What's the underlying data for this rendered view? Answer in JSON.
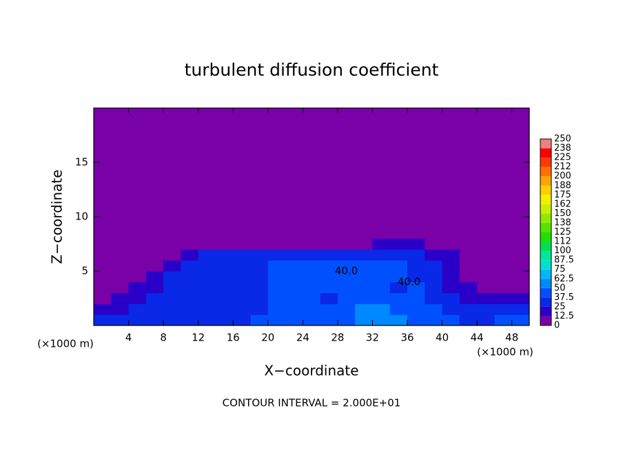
{
  "chart_data": {
    "type": "contour",
    "title": "turbulent diffusion coefficient",
    "xlabel": "X−coordinate",
    "ylabel": "Z−coordinate",
    "xunit": "(×1000 m)",
    "yunit": "(×1000 m)",
    "footer": "CONTOUR INTERVAL = 2.000E+01",
    "xlim": [
      0,
      50
    ],
    "ylim": [
      0,
      20
    ],
    "xticks": [
      4,
      8,
      12,
      16,
      20,
      24,
      28,
      32,
      36,
      40,
      44,
      48
    ],
    "yticks": [
      5,
      10,
      15
    ],
    "xbins": [
      0,
      2,
      4,
      6,
      8,
      10,
      12,
      14,
      16,
      18,
      20,
      22,
      24,
      26,
      28,
      30,
      32,
      34,
      36,
      38,
      40,
      42,
      44,
      46,
      48,
      50
    ],
    "ybins": [
      0,
      1,
      2,
      3,
      4,
      5,
      6,
      7,
      8,
      20
    ],
    "z": [
      [
        30,
        25,
        25,
        30,
        30,
        35,
        35,
        30,
        35,
        40,
        40,
        40,
        40,
        40,
        45,
        50,
        55,
        50,
        45,
        40,
        40,
        35,
        35,
        40,
        45
      ],
      [
        15,
        20,
        25,
        25,
        25,
        30,
        30,
        30,
        35,
        35,
        40,
        40,
        40,
        40,
        45,
        50,
        50,
        45,
        45,
        40,
        35,
        30,
        30,
        35,
        35
      ],
      [
        10,
        15,
        20,
        25,
        25,
        30,
        35,
        35,
        35,
        35,
        40,
        40,
        40,
        35,
        45,
        45,
        45,
        40,
        45,
        35,
        25,
        20,
        20,
        15,
        20
      ],
      [
        10,
        10,
        15,
        20,
        25,
        30,
        35,
        35,
        35,
        35,
        40,
        40,
        40,
        40,
        45,
        40,
        40,
        35,
        40,
        30,
        20,
        15,
        10,
        10,
        10
      ],
      [
        5,
        10,
        10,
        15,
        25,
        30,
        35,
        30,
        35,
        35,
        40,
        40,
        40,
        45,
        40,
        40,
        40,
        40,
        35,
        25,
        15,
        10,
        5,
        5,
        5
      ],
      [
        5,
        5,
        5,
        10,
        20,
        30,
        30,
        30,
        35,
        35,
        40,
        40,
        40,
        40,
        40,
        40,
        40,
        40,
        35,
        25,
        20,
        10,
        5,
        5,
        5
      ],
      [
        0,
        0,
        0,
        5,
        5,
        15,
        25,
        30,
        30,
        30,
        30,
        30,
        30,
        25,
        30,
        30,
        30,
        30,
        30,
        20,
        20,
        5,
        0,
        0,
        0
      ],
      [
        0,
        0,
        0,
        0,
        0,
        0,
        0,
        5,
        5,
        5,
        5,
        5,
        5,
        5,
        5,
        10,
        15,
        20,
        15,
        5,
        0,
        0,
        0,
        0,
        0
      ],
      [
        0,
        0,
        0,
        0,
        0,
        0,
        0,
        0,
        0,
        0,
        0,
        0,
        0,
        0,
        0,
        0,
        0,
        0,
        0,
        0,
        0,
        0,
        0,
        0,
        0
      ]
    ],
    "contour_labels": [
      {
        "text": "40.0",
        "x": 29,
        "y": 5
      },
      {
        "text": "40.0",
        "x": 36.2,
        "y": 4
      }
    ],
    "colorbar": {
      "levels": [
        0,
        12.5,
        25,
        37.5,
        50,
        62.5,
        75,
        87.5,
        100,
        112,
        125,
        138,
        150,
        162,
        175,
        188,
        200,
        212,
        225,
        238,
        250
      ],
      "colors": [
        "#7a00a8",
        "#2a00c8",
        "#0a28e8",
        "#0050ff",
        "#0088ff",
        "#00b8f8",
        "#00e0d0",
        "#00e898",
        "#00e050",
        "#20e000",
        "#58e400",
        "#90ea00",
        "#c8f000",
        "#f4f000",
        "#ffd000",
        "#ffa400",
        "#ff7000",
        "#ff3800",
        "#ff0000",
        "#f08080"
      ]
    }
  }
}
